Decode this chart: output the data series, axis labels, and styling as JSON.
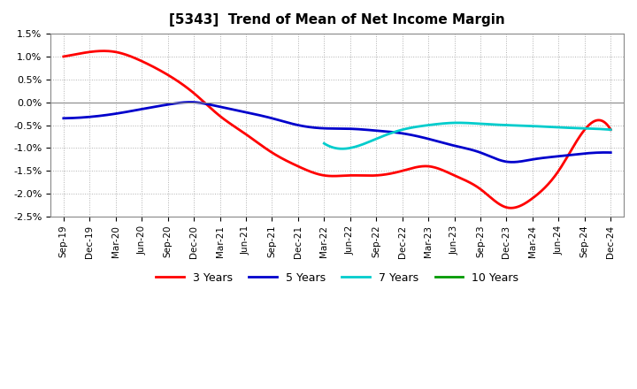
{
  "title": "[5343]  Trend of Mean of Net Income Margin",
  "background_color": "#ffffff",
  "plot_bg_color": "#ffffff",
  "grid_color": "#b0b0b0",
  "ylim": [
    -0.025,
    0.015
  ],
  "yticks": [
    -0.025,
    -0.02,
    -0.015,
    -0.01,
    -0.005,
    0.0,
    0.005,
    0.01,
    0.015
  ],
  "ytick_labels": [
    "-2.5%",
    "-2.0%",
    "-1.5%",
    "-1.0%",
    "-0.5%",
    "0.0%",
    "0.5%",
    "1.0%",
    "1.5%"
  ],
  "x_labels": [
    "Sep-19",
    "Dec-19",
    "Mar-20",
    "Jun-20",
    "Sep-20",
    "Dec-20",
    "Mar-21",
    "Jun-21",
    "Sep-21",
    "Dec-21",
    "Mar-22",
    "Jun-22",
    "Sep-22",
    "Dec-22",
    "Mar-23",
    "Jun-23",
    "Sep-23",
    "Dec-23",
    "Mar-24",
    "Jun-24",
    "Sep-24",
    "Dec-24"
  ],
  "legend_entries": [
    "3 Years",
    "5 Years",
    "7 Years",
    "10 Years"
  ],
  "legend_colors": [
    "#ff0000",
    "#0000cc",
    "#00cccc",
    "#009900"
  ],
  "line_3y_x": [
    0,
    1,
    2,
    3,
    4,
    5,
    6,
    7,
    8,
    9,
    10,
    11,
    12,
    13,
    14,
    15,
    16,
    17,
    18,
    19,
    20,
    21
  ],
  "line_3y_y": [
    0.01,
    0.011,
    0.011,
    0.009,
    0.006,
    0.002,
    -0.003,
    -0.007,
    -0.011,
    -0.014,
    -0.016,
    -0.016,
    -0.016,
    -0.015,
    -0.014,
    -0.016,
    -0.019,
    -0.023,
    -0.021,
    -0.015,
    -0.006,
    -0.006
  ],
  "line_5y_x": [
    0,
    1,
    2,
    3,
    4,
    5,
    6,
    7,
    8,
    9,
    10,
    11,
    12,
    13,
    14,
    15,
    16,
    17,
    18,
    19,
    20,
    21
  ],
  "line_5y_y": [
    -0.0035,
    -0.0032,
    -0.0025,
    -0.0015,
    -0.0005,
    0.0,
    -0.001,
    -0.0022,
    -0.0035,
    -0.005,
    -0.0057,
    -0.0058,
    -0.0062,
    -0.0068,
    -0.008,
    -0.0095,
    -0.011,
    -0.013,
    -0.0125,
    -0.0118,
    -0.0112,
    -0.011
  ],
  "line_7y_x": [
    10,
    11,
    12,
    13,
    14,
    15,
    16,
    17,
    18,
    19,
    20,
    21
  ],
  "line_7y_y": [
    -0.009,
    -0.01,
    -0.008,
    -0.006,
    -0.005,
    -0.0045,
    -0.0047,
    -0.005,
    -0.0052,
    -0.0055,
    -0.0057,
    -0.006
  ],
  "line_10y_x": [],
  "line_10y_y": []
}
